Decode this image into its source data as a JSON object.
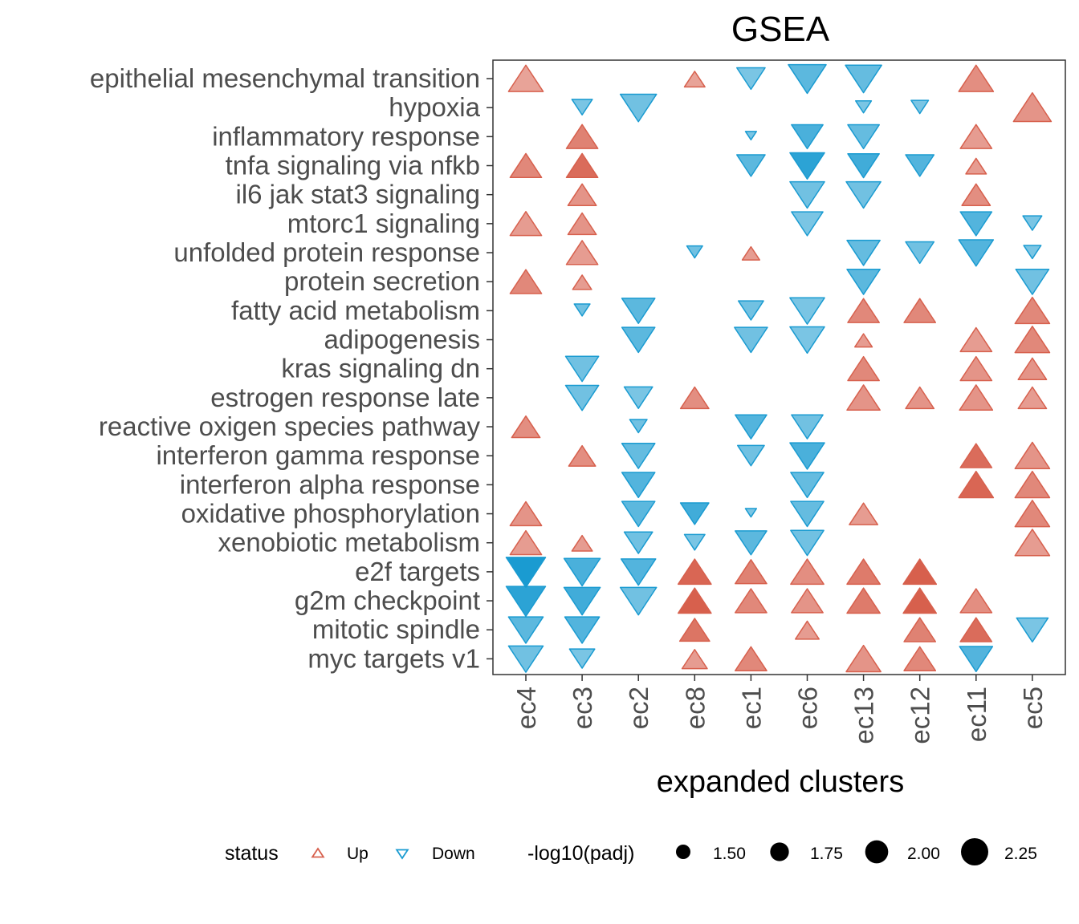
{
  "chart_data": {
    "type": "scatter",
    "title": "GSEA",
    "xlabel": "expanded clusters",
    "ylabel": "",
    "x_categories": [
      "ec4",
      "ec3",
      "ec2",
      "ec8",
      "ec1",
      "ec6",
      "ec13",
      "ec12",
      "ec11",
      "ec5"
    ],
    "y_categories": [
      "epithelial mesenchymal transition",
      "hypoxia",
      "inflammatory response",
      "tnfa signaling via nfkb",
      "il6 jak stat3 signaling",
      "mtorc1 signaling",
      "unfolded protein response",
      "protein secretion",
      "fatty acid metabolism",
      "adipogenesis",
      "kras signaling dn",
      "estrogen response late",
      "reactive oxigen species pathway",
      "interferon gamma response",
      "interferon alpha response",
      "oxidative phosphorylation",
      "xenobiotic metabolism",
      "e2f targets",
      "g2m checkpoint",
      "mitotic spindle",
      "myc targets v1"
    ],
    "status_colors": {
      "Up": "#d7604d",
      "Down": "#1a9bd1"
    },
    "nes_range": [
      2.0,
      3.2
    ],
    "size_range": [
      1.3,
      2.3
    ],
    "legend": {
      "status_title": "status",
      "status_items": [
        "Up",
        "Down"
      ],
      "size_title": "-log10(padj)",
      "size_items": [
        "1.50",
        "1.75",
        "2.00",
        "2.25"
      ],
      "size_values": [
        1.5,
        1.75,
        2.0,
        2.25
      ],
      "placement": "bottom"
    },
    "points": [
      {
        "x": "ec4",
        "y": "epithelial mesenchymal transition",
        "status": "Up",
        "size": 2.05,
        "nes": 2.2
      },
      {
        "x": "ec8",
        "y": "epithelial mesenchymal transition",
        "status": "Up",
        "size": 1.6,
        "nes": 2.2
      },
      {
        "x": "ec1",
        "y": "epithelial mesenchymal transition",
        "status": "Down",
        "size": 1.85,
        "nes": 2.2
      },
      {
        "x": "ec6",
        "y": "epithelial mesenchymal transition",
        "status": "Down",
        "size": 2.15,
        "nes": 2.5
      },
      {
        "x": "ec13",
        "y": "epithelial mesenchymal transition",
        "status": "Down",
        "size": 2.1,
        "nes": 2.4
      },
      {
        "x": "ec11",
        "y": "epithelial mesenchymal transition",
        "status": "Up",
        "size": 2.05,
        "nes": 2.5
      },
      {
        "x": "ec3",
        "y": "hypoxia",
        "status": "Down",
        "size": 1.6,
        "nes": 2.2
      },
      {
        "x": "ec2",
        "y": "hypoxia",
        "status": "Down",
        "size": 2.1,
        "nes": 2.3
      },
      {
        "x": "ec13",
        "y": "hypoxia",
        "status": "Down",
        "size": 1.45,
        "nes": 2.2
      },
      {
        "x": "ec12",
        "y": "hypoxia",
        "status": "Down",
        "size": 1.5,
        "nes": 2.2
      },
      {
        "x": "ec5",
        "y": "hypoxia",
        "status": "Up",
        "size": 2.15,
        "nes": 2.4
      },
      {
        "x": "ec3",
        "y": "inflammatory response",
        "status": "Up",
        "size": 1.95,
        "nes": 2.7
      },
      {
        "x": "ec1",
        "y": "inflammatory response",
        "status": "Down",
        "size": 1.3,
        "nes": 2.2
      },
      {
        "x": "ec6",
        "y": "inflammatory response",
        "status": "Down",
        "size": 1.95,
        "nes": 2.7
      },
      {
        "x": "ec13",
        "y": "inflammatory response",
        "status": "Down",
        "size": 1.95,
        "nes": 2.4
      },
      {
        "x": "ec11",
        "y": "inflammatory response",
        "status": "Up",
        "size": 1.95,
        "nes": 2.3
      },
      {
        "x": "ec4",
        "y": "tnfa signaling via nfkb",
        "status": "Up",
        "size": 1.95,
        "nes": 2.6
      },
      {
        "x": "ec3",
        "y": "tnfa signaling via nfkb",
        "status": "Up",
        "size": 1.95,
        "nes": 3.0
      },
      {
        "x": "ec1",
        "y": "tnfa signaling via nfkb",
        "status": "Down",
        "size": 1.85,
        "nes": 2.5
      },
      {
        "x": "ec6",
        "y": "tnfa signaling via nfkb",
        "status": "Down",
        "size": 2.05,
        "nes": 3.0
      },
      {
        "x": "ec13",
        "y": "tnfa signaling via nfkb",
        "status": "Down",
        "size": 1.95,
        "nes": 2.8
      },
      {
        "x": "ec12",
        "y": "tnfa signaling via nfkb",
        "status": "Down",
        "size": 1.85,
        "nes": 2.6
      },
      {
        "x": "ec11",
        "y": "tnfa signaling via nfkb",
        "status": "Up",
        "size": 1.6,
        "nes": 2.3
      },
      {
        "x": "ec3",
        "y": "il6 jak stat3 signaling",
        "status": "Up",
        "size": 1.85,
        "nes": 2.4
      },
      {
        "x": "ec6",
        "y": "il6 jak stat3 signaling",
        "status": "Down",
        "size": 2.05,
        "nes": 2.3
      },
      {
        "x": "ec13",
        "y": "il6 jak stat3 signaling",
        "status": "Down",
        "size": 2.05,
        "nes": 2.3
      },
      {
        "x": "ec11",
        "y": "il6 jak stat3 signaling",
        "status": "Up",
        "size": 1.85,
        "nes": 2.5
      },
      {
        "x": "ec4",
        "y": "mtorc1 signaling",
        "status": "Up",
        "size": 1.95,
        "nes": 2.3
      },
      {
        "x": "ec3",
        "y": "mtorc1 signaling",
        "status": "Up",
        "size": 1.85,
        "nes": 2.4
      },
      {
        "x": "ec6",
        "y": "mtorc1 signaling",
        "status": "Down",
        "size": 1.95,
        "nes": 2.2
      },
      {
        "x": "ec11",
        "y": "mtorc1 signaling",
        "status": "Down",
        "size": 1.95,
        "nes": 2.6
      },
      {
        "x": "ec5",
        "y": "mtorc1 signaling",
        "status": "Down",
        "size": 1.55,
        "nes": 2.2
      },
      {
        "x": "ec3",
        "y": "unfolded protein response",
        "status": "Up",
        "size": 1.95,
        "nes": 2.3
      },
      {
        "x": "ec8",
        "y": "unfolded protein response",
        "status": "Down",
        "size": 1.45,
        "nes": 2.3
      },
      {
        "x": "ec1",
        "y": "unfolded protein response",
        "status": "Up",
        "size": 1.5,
        "nes": 2.3
      },
      {
        "x": "ec13",
        "y": "unfolded protein response",
        "status": "Down",
        "size": 2.0,
        "nes": 2.4
      },
      {
        "x": "ec12",
        "y": "unfolded protein response",
        "status": "Down",
        "size": 1.85,
        "nes": 2.3
      },
      {
        "x": "ec11",
        "y": "unfolded protein response",
        "status": "Down",
        "size": 2.05,
        "nes": 2.6
      },
      {
        "x": "ec5",
        "y": "unfolded protein response",
        "status": "Down",
        "size": 1.5,
        "nes": 2.2
      },
      {
        "x": "ec4",
        "y": "protein secretion",
        "status": "Up",
        "size": 1.95,
        "nes": 2.6
      },
      {
        "x": "ec3",
        "y": "protein secretion",
        "status": "Up",
        "size": 1.55,
        "nes": 2.3
      },
      {
        "x": "ec13",
        "y": "protein secretion",
        "status": "Down",
        "size": 2.0,
        "nes": 2.5
      },
      {
        "x": "ec5",
        "y": "protein secretion",
        "status": "Down",
        "size": 2.0,
        "nes": 2.3
      },
      {
        "x": "ec3",
        "y": "fatty acid metabolism",
        "status": "Down",
        "size": 1.45,
        "nes": 2.3
      },
      {
        "x": "ec2",
        "y": "fatty acid metabolism",
        "status": "Down",
        "size": 2.0,
        "nes": 2.5
      },
      {
        "x": "ec1",
        "y": "fatty acid metabolism",
        "status": "Down",
        "size": 1.75,
        "nes": 2.3
      },
      {
        "x": "ec6",
        "y": "fatty acid metabolism",
        "status": "Down",
        "size": 2.05,
        "nes": 2.2
      },
      {
        "x": "ec13",
        "y": "fatty acid metabolism",
        "status": "Up",
        "size": 1.95,
        "nes": 2.6
      },
      {
        "x": "ec12",
        "y": "fatty acid metabolism",
        "status": "Up",
        "size": 1.95,
        "nes": 2.6
      },
      {
        "x": "ec5",
        "y": "fatty acid metabolism",
        "status": "Up",
        "size": 2.05,
        "nes": 2.6
      },
      {
        "x": "ec2",
        "y": "adipogenesis",
        "status": "Down",
        "size": 2.0,
        "nes": 2.5
      },
      {
        "x": "ec1",
        "y": "adipogenesis",
        "status": "Down",
        "size": 2.0,
        "nes": 2.3
      },
      {
        "x": "ec6",
        "y": "adipogenesis",
        "status": "Down",
        "size": 2.05,
        "nes": 2.2
      },
      {
        "x": "ec13",
        "y": "adipogenesis",
        "status": "Up",
        "size": 1.5,
        "nes": 2.3
      },
      {
        "x": "ec11",
        "y": "adipogenesis",
        "status": "Up",
        "size": 1.95,
        "nes": 2.3
      },
      {
        "x": "ec5",
        "y": "adipogenesis",
        "status": "Up",
        "size": 2.05,
        "nes": 2.6
      },
      {
        "x": "ec3",
        "y": "kras signaling dn",
        "status": "Down",
        "size": 2.0,
        "nes": 2.3
      },
      {
        "x": "ec13",
        "y": "kras signaling dn",
        "status": "Up",
        "size": 1.95,
        "nes": 2.6
      },
      {
        "x": "ec11",
        "y": "kras signaling dn",
        "status": "Up",
        "size": 1.95,
        "nes": 2.4
      },
      {
        "x": "ec5",
        "y": "kras signaling dn",
        "status": "Up",
        "size": 1.85,
        "nes": 2.4
      },
      {
        "x": "ec3",
        "y": "estrogen response late",
        "status": "Down",
        "size": 2.0,
        "nes": 2.3
      },
      {
        "x": "ec2",
        "y": "estrogen response late",
        "status": "Down",
        "size": 1.85,
        "nes": 2.2
      },
      {
        "x": "ec8",
        "y": "estrogen response late",
        "status": "Up",
        "size": 1.85,
        "nes": 2.5
      },
      {
        "x": "ec13",
        "y": "estrogen response late",
        "status": "Up",
        "size": 2.0,
        "nes": 2.4
      },
      {
        "x": "ec12",
        "y": "estrogen response late",
        "status": "Up",
        "size": 1.85,
        "nes": 2.4
      },
      {
        "x": "ec11",
        "y": "estrogen response late",
        "status": "Up",
        "size": 2.0,
        "nes": 2.4
      },
      {
        "x": "ec5",
        "y": "estrogen response late",
        "status": "Up",
        "size": 1.85,
        "nes": 2.3
      },
      {
        "x": "ec4",
        "y": "reactive oxigen species pathway",
        "status": "Up",
        "size": 1.85,
        "nes": 2.5
      },
      {
        "x": "ec2",
        "y": "reactive oxigen species pathway",
        "status": "Down",
        "size": 1.5,
        "nes": 2.3
      },
      {
        "x": "ec1",
        "y": "reactive oxigen species pathway",
        "status": "Down",
        "size": 1.95,
        "nes": 2.6
      },
      {
        "x": "ec6",
        "y": "reactive oxigen species pathway",
        "status": "Down",
        "size": 1.95,
        "nes": 2.3
      },
      {
        "x": "ec3",
        "y": "interferon gamma response",
        "status": "Up",
        "size": 1.8,
        "nes": 2.5
      },
      {
        "x": "ec2",
        "y": "interferon gamma response",
        "status": "Down",
        "size": 2.0,
        "nes": 2.4
      },
      {
        "x": "ec1",
        "y": "interferon gamma response",
        "status": "Down",
        "size": 1.8,
        "nes": 2.3
      },
      {
        "x": "ec6",
        "y": "interferon gamma response",
        "status": "Down",
        "size": 2.05,
        "nes": 2.7
      },
      {
        "x": "ec11",
        "y": "interferon gamma response",
        "status": "Up",
        "size": 1.95,
        "nes": 3.0
      },
      {
        "x": "ec5",
        "y": "interferon gamma response",
        "status": "Up",
        "size": 2.05,
        "nes": 2.4
      },
      {
        "x": "ec2",
        "y": "interferon alpha response",
        "status": "Down",
        "size": 2.0,
        "nes": 2.6
      },
      {
        "x": "ec6",
        "y": "interferon alpha response",
        "status": "Down",
        "size": 2.0,
        "nes": 2.4
      },
      {
        "x": "ec11",
        "y": "interferon alpha response",
        "status": "Up",
        "size": 2.05,
        "nes": 3.1
      },
      {
        "x": "ec5",
        "y": "interferon alpha response",
        "status": "Up",
        "size": 2.05,
        "nes": 2.6
      },
      {
        "x": "ec4",
        "y": "oxidative phosphorylation",
        "status": "Up",
        "size": 1.95,
        "nes": 2.4
      },
      {
        "x": "ec2",
        "y": "oxidative phosphorylation",
        "status": "Down",
        "size": 2.0,
        "nes": 2.5
      },
      {
        "x": "ec8",
        "y": "oxidative phosphorylation",
        "status": "Down",
        "size": 1.85,
        "nes": 2.8
      },
      {
        "x": "ec1",
        "y": "oxidative phosphorylation",
        "status": "Down",
        "size": 1.3,
        "nes": 2.2
      },
      {
        "x": "ec6",
        "y": "oxidative phosphorylation",
        "status": "Down",
        "size": 2.0,
        "nes": 2.4
      },
      {
        "x": "ec13",
        "y": "oxidative phosphorylation",
        "status": "Up",
        "size": 1.85,
        "nes": 2.3
      },
      {
        "x": "ec5",
        "y": "oxidative phosphorylation",
        "status": "Up",
        "size": 2.05,
        "nes": 2.6
      },
      {
        "x": "ec4",
        "y": "xenobiotic metabolism",
        "status": "Up",
        "size": 1.95,
        "nes": 2.3
      },
      {
        "x": "ec3",
        "y": "xenobiotic metabolism",
        "status": "Up",
        "size": 1.6,
        "nes": 2.3
      },
      {
        "x": "ec2",
        "y": "xenobiotic metabolism",
        "status": "Down",
        "size": 1.85,
        "nes": 2.3
      },
      {
        "x": "ec8",
        "y": "xenobiotic metabolism",
        "status": "Down",
        "size": 1.6,
        "nes": 2.2
      },
      {
        "x": "ec1",
        "y": "xenobiotic metabolism",
        "status": "Down",
        "size": 1.95,
        "nes": 2.5
      },
      {
        "x": "ec6",
        "y": "xenobiotic metabolism",
        "status": "Down",
        "size": 2.0,
        "nes": 2.3
      },
      {
        "x": "ec5",
        "y": "xenobiotic metabolism",
        "status": "Up",
        "size": 2.05,
        "nes": 2.3
      },
      {
        "x": "ec4",
        "y": "e2f targets",
        "status": "Down",
        "size": 2.2,
        "nes": 3.2
      },
      {
        "x": "ec3",
        "y": "e2f targets",
        "status": "Down",
        "size": 2.1,
        "nes": 2.7
      },
      {
        "x": "ec2",
        "y": "e2f targets",
        "status": "Down",
        "size": 2.05,
        "nes": 2.6
      },
      {
        "x": "ec8",
        "y": "e2f targets",
        "status": "Up",
        "size": 2.0,
        "nes": 3.1
      },
      {
        "x": "ec1",
        "y": "e2f targets",
        "status": "Up",
        "size": 1.95,
        "nes": 2.7
      },
      {
        "x": "ec6",
        "y": "e2f targets",
        "status": "Up",
        "size": 2.0,
        "nes": 2.5
      },
      {
        "x": "ec13",
        "y": "e2f targets",
        "status": "Up",
        "size": 2.0,
        "nes": 2.8
      },
      {
        "x": "ec12",
        "y": "e2f targets",
        "status": "Up",
        "size": 2.0,
        "nes": 3.2
      },
      {
        "x": "ec4",
        "y": "g2m checkpoint",
        "status": "Down",
        "size": 2.2,
        "nes": 3.0
      },
      {
        "x": "ec3",
        "y": "g2m checkpoint",
        "status": "Down",
        "size": 2.1,
        "nes": 2.8
      },
      {
        "x": "ec2",
        "y": "g2m checkpoint",
        "status": "Down",
        "size": 2.1,
        "nes": 2.3
      },
      {
        "x": "ec8",
        "y": "g2m checkpoint",
        "status": "Up",
        "size": 2.0,
        "nes": 3.2
      },
      {
        "x": "ec1",
        "y": "g2m checkpoint",
        "status": "Up",
        "size": 1.95,
        "nes": 2.6
      },
      {
        "x": "ec6",
        "y": "g2m checkpoint",
        "status": "Up",
        "size": 1.95,
        "nes": 2.4
      },
      {
        "x": "ec13",
        "y": "g2m checkpoint",
        "status": "Up",
        "size": 2.0,
        "nes": 2.8
      },
      {
        "x": "ec12",
        "y": "g2m checkpoint",
        "status": "Up",
        "size": 2.0,
        "nes": 3.2
      },
      {
        "x": "ec11",
        "y": "g2m checkpoint",
        "status": "Up",
        "size": 1.95,
        "nes": 2.5
      },
      {
        "x": "ec4",
        "y": "mitotic spindle",
        "status": "Down",
        "size": 2.05,
        "nes": 2.5
      },
      {
        "x": "ec3",
        "y": "mitotic spindle",
        "status": "Down",
        "size": 2.05,
        "nes": 2.6
      },
      {
        "x": "ec8",
        "y": "mitotic spindle",
        "status": "Up",
        "size": 1.9,
        "nes": 2.9
      },
      {
        "x": "ec6",
        "y": "mitotic spindle",
        "status": "Up",
        "size": 1.7,
        "nes": 2.3
      },
      {
        "x": "ec12",
        "y": "mitotic spindle",
        "status": "Up",
        "size": 1.95,
        "nes": 2.7
      },
      {
        "x": "ec11",
        "y": "mitotic spindle",
        "status": "Up",
        "size": 1.95,
        "nes": 3.0
      },
      {
        "x": "ec5",
        "y": "mitotic spindle",
        "status": "Down",
        "size": 1.95,
        "nes": 2.2
      },
      {
        "x": "ec4",
        "y": "myc targets v1",
        "status": "Down",
        "size": 2.05,
        "nes": 2.3
      },
      {
        "x": "ec3",
        "y": "myc targets v1",
        "status": "Down",
        "size": 1.75,
        "nes": 2.2
      },
      {
        "x": "ec8",
        "y": "myc targets v1",
        "status": "Up",
        "size": 1.75,
        "nes": 2.3
      },
      {
        "x": "ec1",
        "y": "myc targets v1",
        "status": "Up",
        "size": 1.95,
        "nes": 2.6
      },
      {
        "x": "ec13",
        "y": "myc targets v1",
        "status": "Up",
        "size": 2.05,
        "nes": 2.4
      },
      {
        "x": "ec12",
        "y": "myc targets v1",
        "status": "Up",
        "size": 1.95,
        "nes": 2.6
      },
      {
        "x": "ec11",
        "y": "myc targets v1",
        "status": "Down",
        "size": 2.0,
        "nes": 2.6
      }
    ]
  }
}
